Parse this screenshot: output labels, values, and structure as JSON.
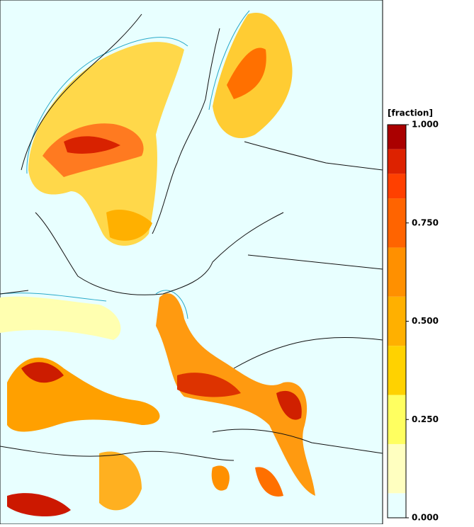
{
  "colorbar": {
    "label": "[fraction]",
    "bounds": [
      0,
      0.0625,
      0.1875,
      0.3125,
      0.4375,
      0.5625,
      0.6875,
      0.8125,
      0.875,
      0.9375,
      1
    ],
    "colors": [
      "#e8ffff",
      "#ffffc0",
      "#ffff60",
      "#ffd200",
      "#ffb000",
      "#ff9000",
      "#ff6400",
      "#ff4000",
      "#dd2200",
      "#aa0000"
    ],
    "lim": [
      0,
      1
    ],
    "ticks": [
      {
        "value": 0,
        "label": "0.000"
      },
      {
        "value": 0.25,
        "label": "0.250"
      },
      {
        "value": 0.5,
        "label": "0.500"
      },
      {
        "value": 0.75,
        "label": "0.750"
      },
      {
        "value": 1,
        "label": "1.000"
      }
    ]
  }
}
